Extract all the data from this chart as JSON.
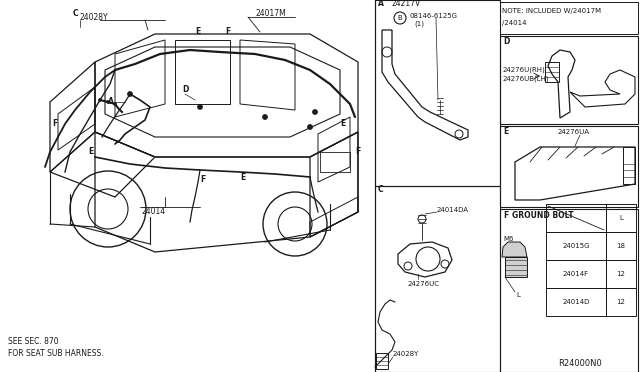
{
  "bg_color": "#ffffff",
  "line_color": "#1a1a1a",
  "fig_width": 6.4,
  "fig_height": 3.72,
  "note_text1": "NOTE: INCLUDED W/24017M",
  "note_text2": "/24014",
  "ref_code": "R24000N0",
  "footer_line1": "SEE SEC. 870",
  "footer_line2": "FOR SEAT SUB HARNESS.",
  "ground_bolt_label": "F   GROUND BOLT",
  "ground_bolt_rows": [
    [
      "24015G",
      "18"
    ],
    [
      "24014F",
      "12"
    ],
    [
      "24014D",
      "12"
    ]
  ],
  "ground_bolt_m6": "M6",
  "ground_bolt_l": "L",
  "part_24017M": "24017M",
  "part_24028Y": "24028Y",
  "part_24014": "24014",
  "part_24217V": "24217V",
  "part_08146": "08146-6125G",
  "part_08146b": "(1)",
  "part_24014DA": "24014DA",
  "part_24276UC": "24276UC",
  "part_24028Y2": "24028Y",
  "part_D1": "24276U(RH)",
  "part_D2": "24276UB(LH)",
  "part_E1": "24276UA",
  "lbl_A": "A",
  "lbl_B": "B",
  "lbl_C": "C",
  "lbl_D": "D",
  "lbl_E_sec": "E",
  "lbl_F_sec": "F"
}
